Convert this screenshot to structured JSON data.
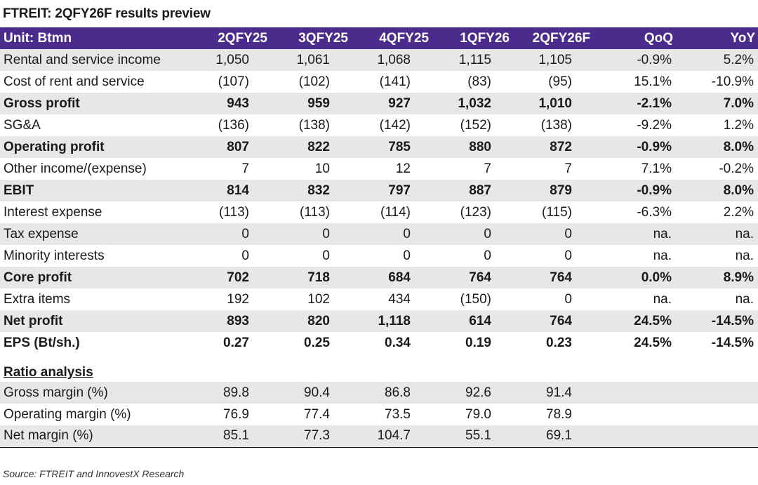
{
  "title": "FTREIT: 2QFY26F results preview",
  "header": {
    "unit": "Unit: Btmn",
    "columns": [
      "2QFY25",
      "3QFY25",
      "4QFY25",
      "1QFY26",
      "2QFY26F",
      "QoQ",
      "YoY"
    ]
  },
  "rows": [
    {
      "label": "Rental and service income",
      "values": [
        "1,050",
        "1,061",
        "1,068",
        "1,115",
        "1,105"
      ],
      "qoq": "-0.9%",
      "yoy": "5.2%"
    },
    {
      "label": "Cost of rent and service",
      "values": [
        "(107)",
        "(102)",
        "(141)",
        "(83)",
        "(95)"
      ],
      "qoq": "15.1%",
      "yoy": "-10.9%"
    },
    {
      "label": "Gross profit",
      "values": [
        "943",
        "959",
        "927",
        "1,032",
        "1,010"
      ],
      "qoq": "-2.1%",
      "yoy": "7.0%"
    },
    {
      "label": "SG&A",
      "values": [
        "(136)",
        "(138)",
        "(142)",
        "(152)",
        "(138)"
      ],
      "qoq": "-9.2%",
      "yoy": "1.2%"
    },
    {
      "label": "Operating profit",
      "values": [
        "807",
        "822",
        "785",
        "880",
        "872"
      ],
      "qoq": "-0.9%",
      "yoy": "8.0%"
    },
    {
      "label": "Other income/(expense)",
      "values": [
        "7",
        "10",
        "12",
        "7",
        "7"
      ],
      "qoq": "7.1%",
      "yoy": "-0.2%"
    },
    {
      "label": "EBIT",
      "values": [
        "814",
        "832",
        "797",
        "887",
        "879"
      ],
      "qoq": "-0.9%",
      "yoy": "8.0%"
    },
    {
      "label": "Interest expense",
      "values": [
        "(113)",
        "(113)",
        "(114)",
        "(123)",
        "(115)"
      ],
      "qoq": "-6.3%",
      "yoy": "2.2%"
    },
    {
      "label": "Tax expense",
      "values": [
        "0",
        "0",
        "0",
        "0",
        "0"
      ],
      "qoq": "na.",
      "yoy": "na."
    },
    {
      "label": "Minority interests",
      "values": [
        "0",
        "0",
        "0",
        "0",
        "0"
      ],
      "qoq": "na.",
      "yoy": "na."
    },
    {
      "label": "Core profit",
      "values": [
        "702",
        "718",
        "684",
        "764",
        "764"
      ],
      "qoq": "0.0%",
      "yoy": "8.9%"
    },
    {
      "label": "Extra items",
      "values": [
        "192",
        "102",
        "434",
        "(150)",
        "0"
      ],
      "qoq": "na.",
      "yoy": "na."
    },
    {
      "label": "Net profit",
      "values": [
        "893",
        "820",
        "1,118",
        "614",
        "764"
      ],
      "qoq": "24.5%",
      "yoy": "-14.5%"
    },
    {
      "label": "EPS (Bt/sh.)",
      "values": [
        "0.27",
        "0.25",
        "0.34",
        "0.19",
        "0.23"
      ],
      "qoq": "24.5%",
      "yoy": "-14.5%"
    }
  ],
  "ratio": {
    "heading": "Ratio analysis",
    "rows": [
      {
        "label": "Gross margin (%)",
        "values": [
          "89.8",
          "90.4",
          "86.8",
          "92.6",
          "91.4"
        ]
      },
      {
        "label": "Operating margin (%)",
        "values": [
          "76.9",
          "77.4",
          "73.5",
          "79.0",
          "78.9"
        ]
      },
      {
        "label": "Net margin (%)",
        "values": [
          "85.1",
          "77.3",
          "104.7",
          "55.1",
          "69.1"
        ]
      }
    ]
  },
  "source": "Source: FTREIT and InnovestX Research",
  "colors": {
    "header_bg": "#4b2b8c",
    "shade_bg": "#e7e7e7"
  }
}
